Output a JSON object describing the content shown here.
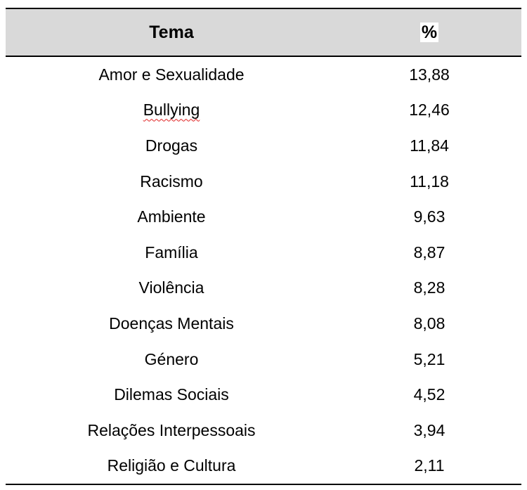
{
  "table": {
    "headers": [
      "Tema",
      "%"
    ],
    "rows": [
      {
        "tema": "Amor e Sexualidade",
        "pct": "13,88"
      },
      {
        "tema": "Bullying",
        "pct": "12,46",
        "spellcheck_flag": true
      },
      {
        "tema": "Drogas",
        "pct": "11,84"
      },
      {
        "tema": "Racismo",
        "pct": "11,18"
      },
      {
        "tema": "Ambiente",
        "pct": "9,63"
      },
      {
        "tema": "Família",
        "pct": "8,87"
      },
      {
        "tema": "Violência",
        "pct": "8,28"
      },
      {
        "tema": "Doenças Mentais",
        "pct": "8,08"
      },
      {
        "tema": "Género",
        "pct": "5,21"
      },
      {
        "tema": "Dilemas Sociais",
        "pct": "4,52"
      },
      {
        "tema": "Relações Interpessoais",
        "pct": "3,94"
      },
      {
        "tema": "Religião e Cultura",
        "pct": "2,11"
      }
    ],
    "header_bg": "#d9d9d9",
    "spellcheck_color": "#e02020"
  }
}
